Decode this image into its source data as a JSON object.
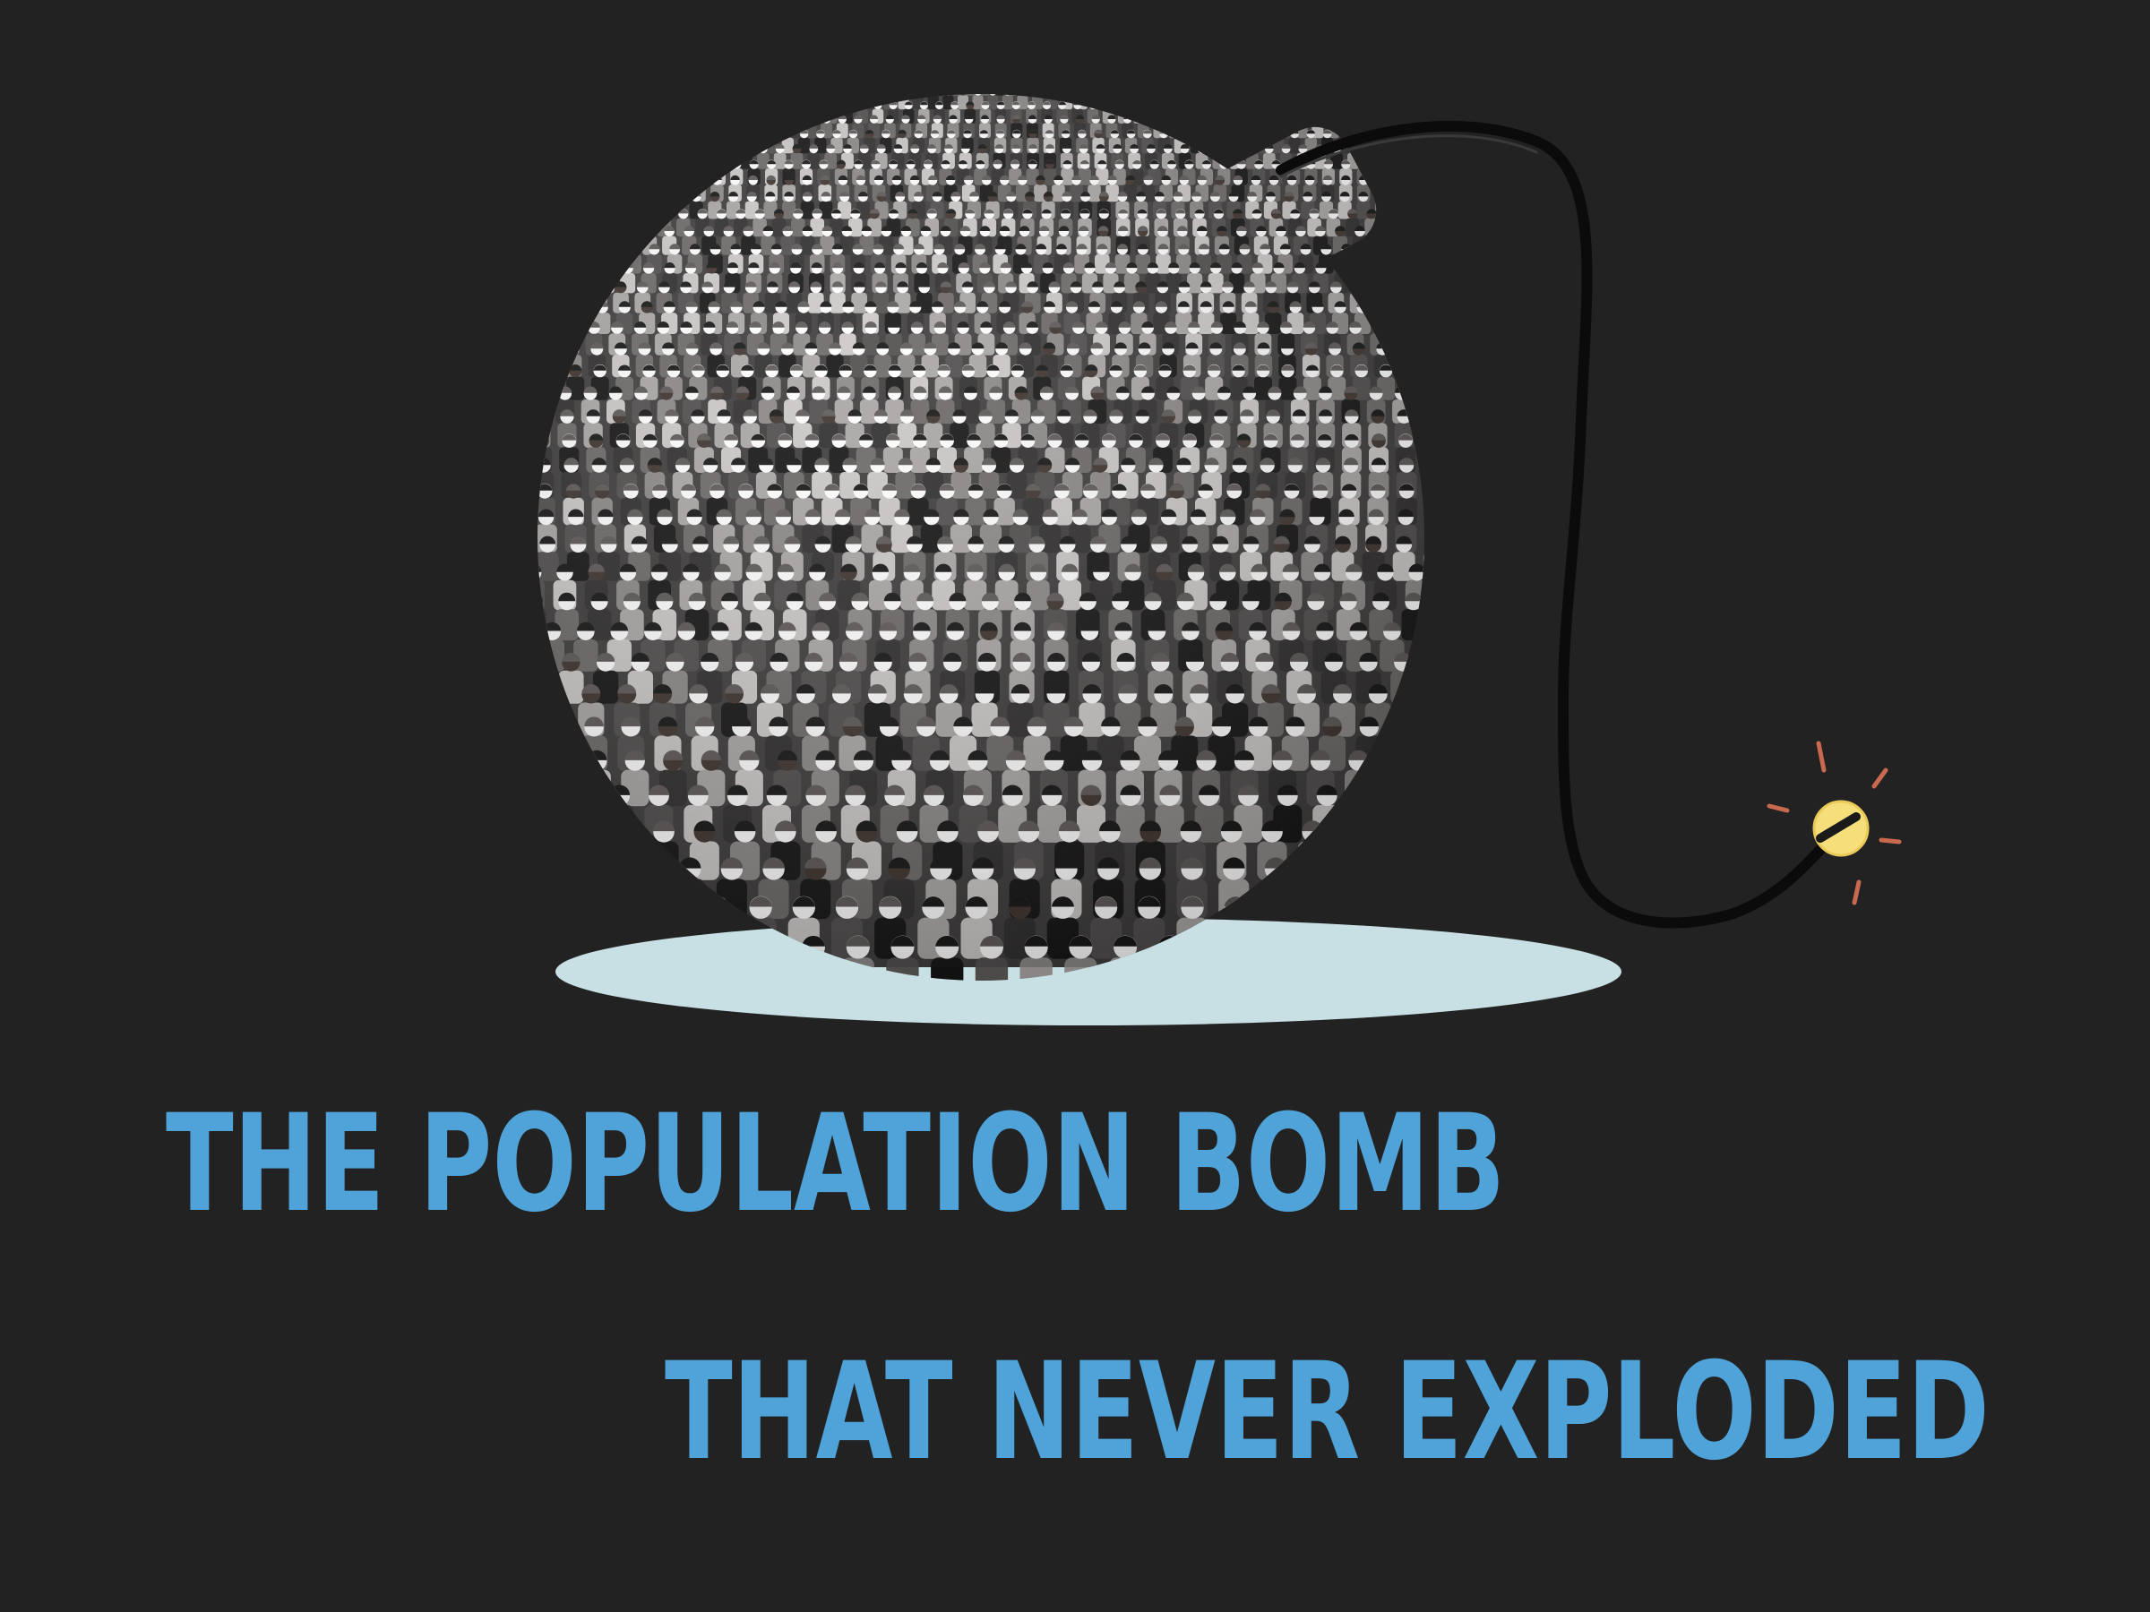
{
  "slide": {
    "background_color": "#222222",
    "title_color": "#4FA3D8",
    "title_line1": "THE POPULATION BOMB",
    "title_line2": "THAT NEVER EXPLODED"
  },
  "illustration": {
    "icon": "crowd-bomb-icon",
    "crowd_colors": [
      "#ffffff",
      "#e8e6e6",
      "#cbc7c7",
      "#a9a5a5",
      "#8a8686",
      "#6a6666",
      "#4d4a4a",
      "#2c2a2a",
      "#111111"
    ],
    "floor_color": "#c8dfe3",
    "fuse_color": "#0b0b0b",
    "spark_color": "#f6df7a",
    "spark_ray_color": "#c9694f"
  }
}
